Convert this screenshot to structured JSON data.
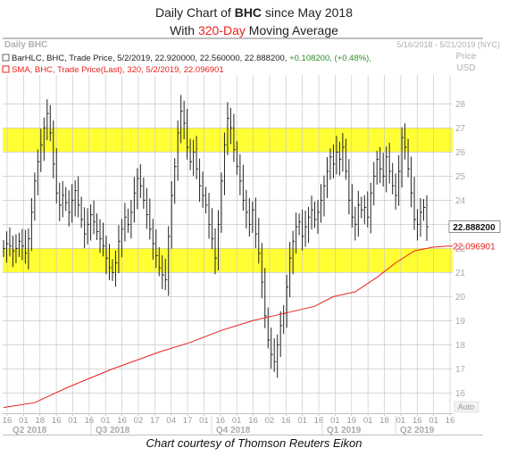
{
  "title": {
    "line1_prefix": "Daily Chart of ",
    "line1_ticker": "BHC",
    "line1_suffix": " since May 2018",
    "line2_prefix": "With ",
    "line2_highlight": "320-Day",
    "line2_suffix": " Moving Average"
  },
  "caption": "Chart courtesy of Thomson Reuters Eikon",
  "chart_data": {
    "type": "line",
    "panel_label": "Daily BHC",
    "date_range": "5/16/2018 - 5/21/2019 (NYC)",
    "axis_title_line1": "Price",
    "axis_title_line2": "USD",
    "legend": [
      {
        "text": "BarHLC, BHC, Trade Price, 5/2/2019, 22.920000, 22.560000, 22.888200, ",
        "change": "+0.108200, (+0.48%),",
        "color": "#222222"
      },
      {
        "text": "SMA, BHC, Trade Price(Last),  320,  5/2/2019, 22.096901",
        "color": "#e8221c"
      }
    ],
    "ylim": [
      15.2,
      29.2
    ],
    "yticks": [
      16,
      17,
      18,
      19,
      20,
      21,
      22,
      23,
      24,
      25,
      26,
      27,
      28
    ],
    "last_price_label": "22.888200",
    "last_price": 22.8882,
    "sma_label": "22.096901",
    "sma_last": 22.0969,
    "auto_label": "Auto",
    "bands": [
      {
        "from": 26.0,
        "to": 27.0,
        "color": "#ffff33"
      },
      {
        "from": 21.0,
        "to": 22.0,
        "color": "#ffff33"
      }
    ],
    "x_ticks": [
      "16",
      "01",
      "18",
      "16",
      "01",
      "16",
      "01",
      "16",
      "02",
      "17",
      "04",
      "17",
      "01",
      "16",
      "01",
      "16",
      "02",
      "16",
      "01",
      "16",
      "01",
      "19",
      "01",
      "18",
      "01",
      "16",
      "01",
      "16"
    ],
    "quarters": [
      "Q2 2018",
      "Q3 2018",
      "Q4 2018",
      "Q1 2019",
      "Q2 2019"
    ],
    "series": [
      {
        "name": "BarHLC",
        "color": "#222222",
        "close": [
          22.0,
          22.2,
          22.1,
          21.9,
          22.0,
          22.3,
          22.1,
          21.8,
          22.4,
          23.5,
          24.8,
          25.6,
          26.3,
          27.0,
          27.6,
          26.8,
          25.5,
          24.3,
          23.8,
          24.2,
          23.9,
          23.5,
          24.0,
          24.4,
          23.8,
          23.2,
          22.6,
          23.0,
          23.4,
          23.1,
          22.7,
          22.4,
          22.1,
          21.6,
          21.2,
          21.0,
          21.4,
          22.3,
          22.8,
          23.3,
          23.0,
          23.5,
          24.3,
          24.9,
          24.6,
          24.0,
          23.4,
          22.8,
          22.2,
          21.7,
          21.2,
          20.9,
          20.7,
          22.5,
          24.2,
          25.4,
          26.8,
          27.7,
          27.2,
          26.2,
          25.6,
          26.0,
          25.3,
          24.6,
          24.2,
          23.8,
          23.0,
          22.4,
          21.6,
          23.0,
          24.8,
          26.3,
          27.4,
          27.0,
          26.1,
          25.4,
          24.8,
          24.0,
          23.5,
          23.0,
          23.6,
          22.6,
          21.8,
          20.6,
          19.2,
          18.2,
          17.6,
          17.3,
          18.0,
          18.8,
          19.3,
          20.4,
          21.6,
          22.3,
          22.9,
          23.1,
          22.5,
          22.9,
          23.3,
          23.6,
          23.2,
          23.5,
          24.0,
          24.6,
          25.2,
          25.8,
          25.5,
          26.0,
          25.7,
          26.2,
          25.2,
          24.0,
          23.3,
          23.0,
          23.8,
          23.6,
          23.7,
          23.3,
          24.3,
          25.0,
          25.7,
          25.3,
          25.0,
          25.8,
          25.2,
          24.6,
          24.2,
          25.2,
          26.6,
          26.2,
          25.3,
          24.3,
          23.2,
          23.0,
          23.5,
          23.7,
          22.9
        ]
      },
      {
        "name": "SMA",
        "color": "#e8221c",
        "points": [
          [
            0,
            15.4
          ],
          [
            10,
            15.6
          ],
          [
            20,
            16.2
          ],
          [
            35,
            17.0
          ],
          [
            50,
            17.7
          ],
          [
            60,
            18.1
          ],
          [
            70,
            18.6
          ],
          [
            80,
            19.0
          ],
          [
            90,
            19.3
          ],
          [
            100,
            19.6
          ],
          [
            106,
            20.0
          ],
          [
            113,
            20.2
          ],
          [
            120,
            20.8
          ],
          [
            126,
            21.4
          ],
          [
            132,
            21.9
          ],
          [
            138,
            22.05
          ],
          [
            143,
            22.1
          ]
        ]
      }
    ]
  }
}
